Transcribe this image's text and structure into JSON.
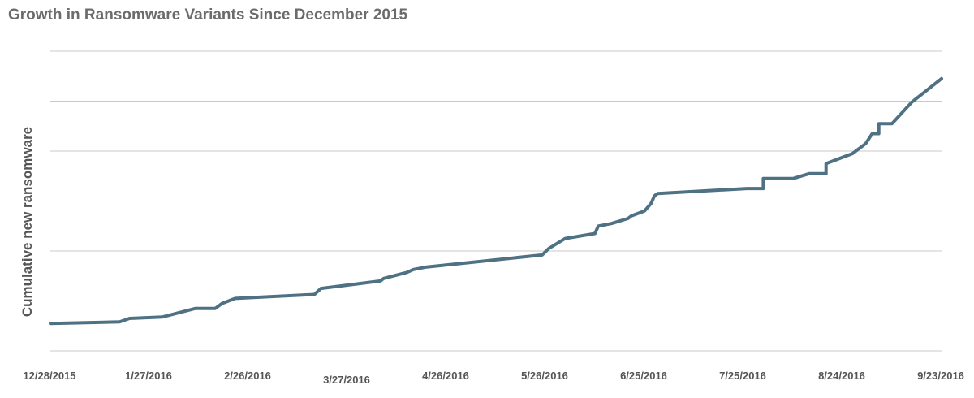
{
  "title": "Growth in Ransomware Variants Since December 2015",
  "chart_data": {
    "type": "line",
    "title": "Growth in Ransomware Variants Since December 2015",
    "xlabel": "",
    "ylabel": "Cumulative new ransomware",
    "x_tick_labels": [
      "12/28/2015",
      "1/27/2016",
      "2/26/2016",
      "3/27/2016",
      "4/26/2016",
      "5/26/2016",
      "6/25/2016",
      "7/25/2016",
      "8/24/2016",
      "9/23/2016"
    ],
    "xlim": [
      "2015-12-28",
      "2016-09-23"
    ],
    "ylim": [
      0,
      6
    ],
    "y_grid_lines": 7,
    "grid": true,
    "legend": "none",
    "line_color": "#4f7184",
    "series": [
      {
        "x": [
          "2015-12-28",
          "2016-01-18",
          "2016-01-21",
          "2016-01-31",
          "2016-02-10",
          "2016-02-16",
          "2016-02-18",
          "2016-02-22",
          "2016-03-17",
          "2016-03-19",
          "2016-04-06",
          "2016-04-07",
          "2016-04-14",
          "2016-04-16",
          "2016-04-20",
          "2016-05-25",
          "2016-05-27",
          "2016-06-01",
          "2016-06-10",
          "2016-06-11",
          "2016-06-15",
          "2016-06-20",
          "2016-06-21",
          "2016-06-25",
          "2016-06-27",
          "2016-06-28",
          "2016-06-29",
          "2016-07-26",
          "2016-07-31",
          "2016-07-31",
          "2016-08-09",
          "2016-08-14",
          "2016-08-19",
          "2016-08-19",
          "2016-08-27",
          "2016-08-31",
          "2016-09-02",
          "2016-09-04",
          "2016-09-04",
          "2016-09-08",
          "2016-09-14",
          "2016-09-23"
        ],
        "y": [
          0.55,
          0.58,
          0.65,
          0.68,
          0.85,
          0.85,
          0.95,
          1.05,
          1.13,
          1.25,
          1.4,
          1.45,
          1.57,
          1.63,
          1.68,
          1.92,
          2.05,
          2.25,
          2.35,
          2.5,
          2.55,
          2.65,
          2.7,
          2.8,
          2.95,
          3.1,
          3.15,
          3.25,
          3.25,
          3.45,
          3.45,
          3.55,
          3.55,
          3.75,
          3.95,
          4.15,
          4.35,
          4.35,
          4.55,
          4.55,
          4.98,
          5.45
        ]
      }
    ]
  }
}
